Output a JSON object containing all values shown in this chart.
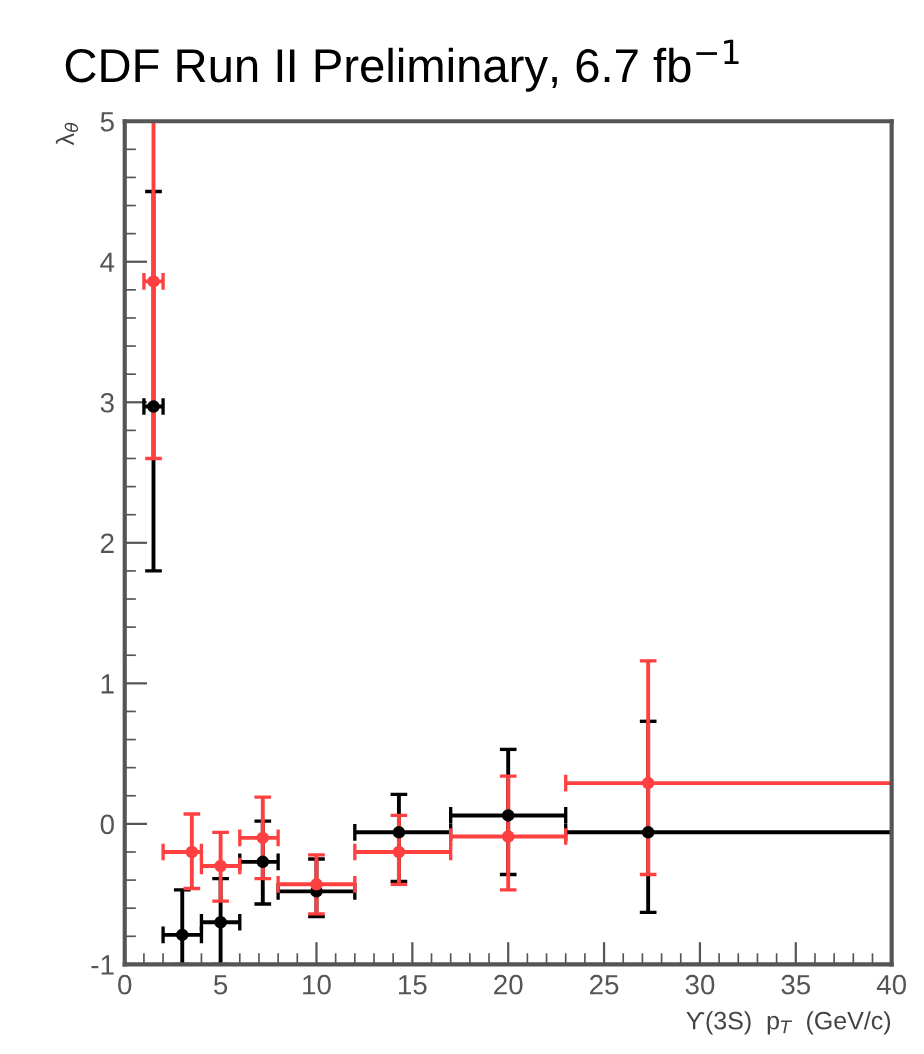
{
  "chart_data": {
    "type": "scatter",
    "title": "CDF Run II Preliminary, 6.7 fb$^{−1}$",
    "xlabel": "ϒ(3S)  p$_{T}$  (GeV/c)",
    "ylabel": "λ$_{θ}$",
    "marker": "circle",
    "grid": false,
    "xlim": [
      0,
      40
    ],
    "xticks": [
      0,
      5,
      10,
      15,
      20,
      25,
      30,
      35,
      40
    ],
    "ylim": [
      -1,
      5
    ],
    "yticks": [
      -1,
      0,
      1,
      2,
      3,
      4,
      5
    ],
    "series": [
      {
        "color": "#000000",
        "x": [
          1.5,
          3,
          5,
          7.2,
          10,
          14.3,
          20,
          27.3
        ],
        "values": [
          2.97,
          -0.79,
          -0.7,
          -0.27,
          -0.48,
          -0.06,
          0.06,
          -0.06
        ],
        "xerrors": [
          [
            1,
            2
          ],
          [
            2,
            4
          ],
          [
            4,
            6
          ],
          [
            6,
            8
          ],
          [
            8,
            12
          ],
          [
            12,
            17
          ],
          [
            17,
            23
          ],
          [
            23,
            40
          ]
        ],
        "errors": [
          [
            1.8,
            4.5
          ],
          [
            -1,
            -0.47
          ],
          [
            -1,
            -0.39
          ],
          [
            -0.57,
            0.02
          ],
          [
            -0.66,
            -0.25
          ],
          [
            -0.41,
            0.21
          ],
          [
            -0.36,
            0.53
          ],
          [
            -0.63,
            0.73
          ]
        ]
      },
      {
        "color": "#ff4040",
        "x": [
          1.5,
          3.5,
          5,
          7.2,
          10,
          14.3,
          20,
          27.3
        ],
        "values": [
          3.86,
          -0.2,
          -0.3,
          -0.1,
          -0.43,
          -0.2,
          -0.09,
          0.29
        ],
        "xerrors": [
          [
            1,
            2
          ],
          [
            2,
            4
          ],
          [
            4,
            6
          ],
          [
            6,
            8
          ],
          [
            8,
            12
          ],
          [
            12,
            17
          ],
          [
            17,
            23
          ],
          [
            23,
            40
          ]
        ],
        "errors": [
          [
            2.6,
            5
          ],
          [
            -0.46,
            0.07
          ],
          [
            -0.55,
            -0.06
          ],
          [
            -0.39,
            0.19
          ],
          [
            -0.64,
            -0.22
          ],
          [
            -0.43,
            0.06
          ],
          [
            -0.47,
            0.34
          ],
          [
            -0.36,
            1.16
          ]
        ]
      }
    ]
  }
}
